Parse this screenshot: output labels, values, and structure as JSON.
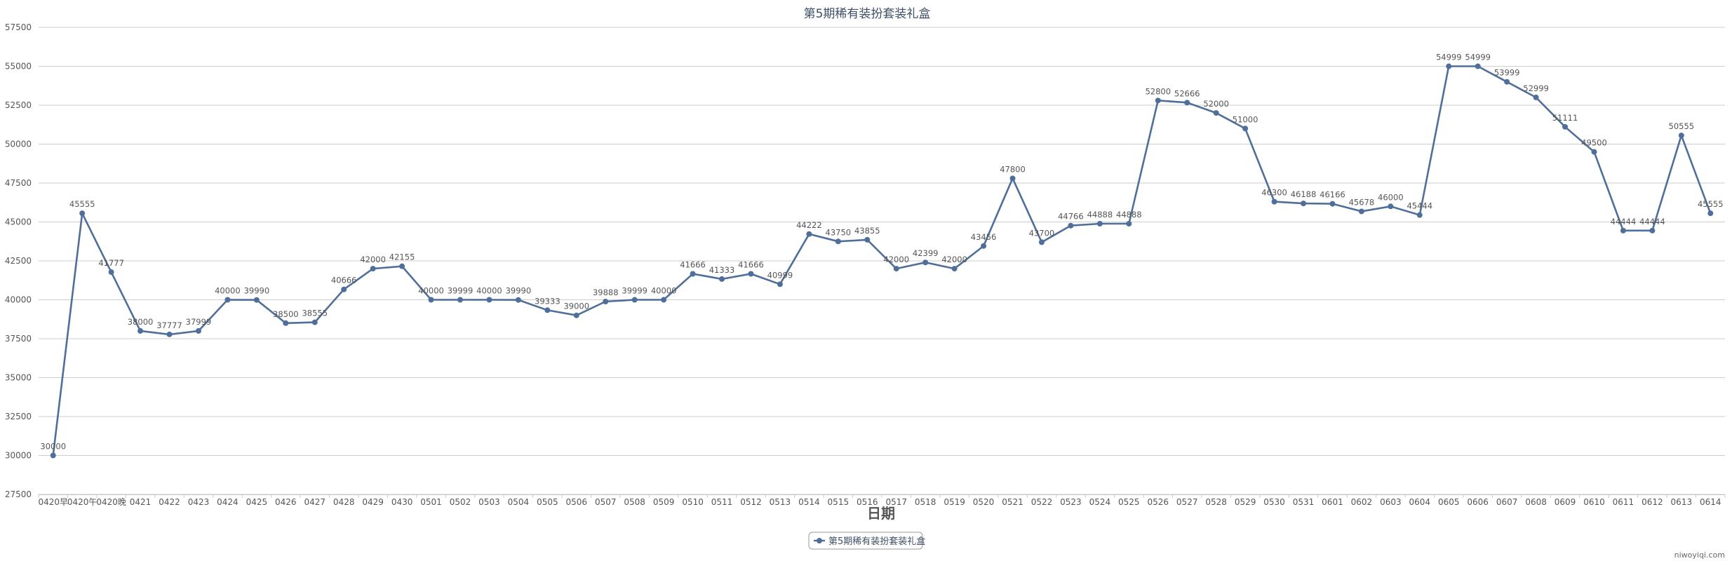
{
  "chart_data": {
    "type": "line",
    "title": "第5期稀有装扮套装礼盒",
    "xlabel": "日期",
    "ylabel": "",
    "ylim": [
      27500,
      57500
    ],
    "yticks": [
      27500,
      30000,
      32500,
      35000,
      37500,
      40000,
      42500,
      45000,
      47500,
      50000,
      52500,
      55000,
      57500
    ],
    "grid": true,
    "legend_position": "bottom-center",
    "categories": [
      "0420早",
      "0420午",
      "0420晚",
      "0421",
      "0422",
      "0423",
      "0424",
      "0425",
      "0426",
      "0427",
      "0428",
      "0429",
      "0430",
      "0501",
      "0502",
      "0503",
      "0504",
      "0505",
      "0506",
      "0507",
      "0508",
      "0509",
      "0510",
      "0511",
      "0512",
      "0513",
      "0514",
      "0515",
      "0516",
      "0517",
      "0518",
      "0519",
      "0520",
      "0521",
      "0522",
      "0523",
      "0524",
      "0525",
      "0526",
      "0527",
      "0528",
      "0529",
      "0530",
      "0531",
      "0601",
      "0602",
      "0603",
      "0604",
      "0605",
      "0606",
      "0607",
      "0608",
      "0609",
      "0610",
      "0611",
      "0612",
      "0613",
      "0614"
    ],
    "series": [
      {
        "name": "第5期稀有装扮套装礼盒",
        "color": "#4f6f9a",
        "values": [
          30000,
          45555,
          41777,
          38000,
          37777,
          37999,
          40000,
          39990,
          38500,
          38555,
          40666,
          42000,
          42155,
          40000,
          39999,
          40000,
          39990,
          39333,
          39000,
          39888,
          39999,
          40000,
          41666,
          41333,
          41666,
          40999,
          44222,
          43750,
          43855,
          42000,
          42399,
          42000,
          43456,
          47800,
          43700,
          44766,
          44888,
          44888,
          52800,
          52666,
          52000,
          51000,
          46300,
          46188,
          46166,
          45678,
          46000,
          45444,
          54999,
          54999,
          53999,
          52999,
          51111,
          49500,
          44444,
          44444,
          50555,
          45555
        ]
      }
    ]
  },
  "watermark": "niwoyiqi.com"
}
